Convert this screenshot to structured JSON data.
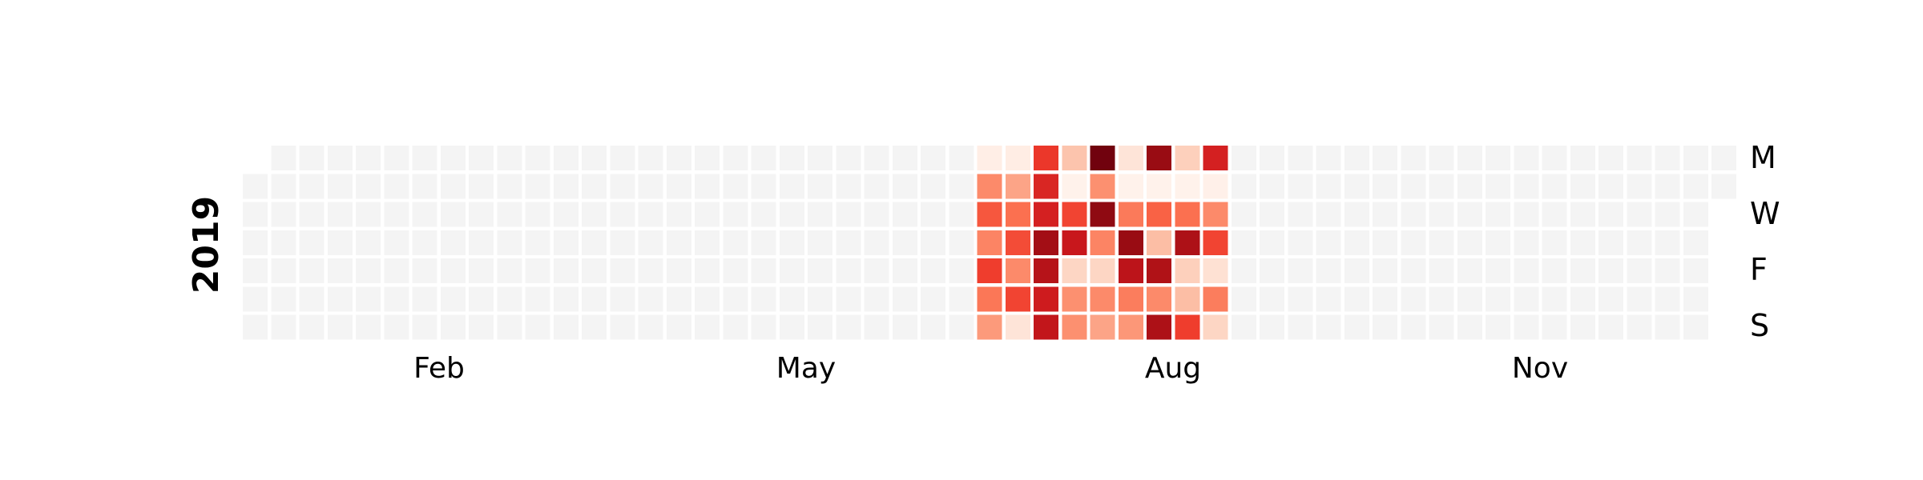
{
  "chart_data": {
    "type": "heatmap",
    "title": "",
    "xlabel": "",
    "ylabel": "2019",
    "year_label": "2019",
    "first_day": "2019-01-01",
    "month_labels": [
      "Feb",
      "May",
      "Aug",
      "Nov"
    ],
    "day_labels": [
      "M",
      "W",
      "F",
      "S"
    ],
    "colormap": "Reds",
    "empty_color": "#f4f4f4",
    "grid": false,
    "legend": "none",
    "active_range": [
      "2019-07-01",
      "2019-08-31"
    ],
    "weeks": [
      {
        "week_of": "2019-07-01",
        "values": [
          0.04,
          0.4,
          0.55,
          0.42,
          0.62,
          0.46,
          0.35
        ]
      },
      {
        "week_of": "2019-07-08",
        "values": [
          0.05,
          0.32,
          0.48,
          0.58,
          0.4,
          0.6,
          0.1
        ]
      },
      {
        "week_of": "2019-07-15",
        "values": [
          0.64,
          0.7,
          0.72,
          0.88,
          0.82,
          0.74,
          0.78
        ]
      },
      {
        "week_of": "2019-07-22",
        "values": [
          0.22,
          0.02,
          0.6,
          0.76,
          0.16,
          0.38,
          0.38
        ]
      },
      {
        "week_of": "2019-07-29",
        "values": [
          0.98,
          0.38,
          0.92,
          0.42,
          0.16,
          0.4,
          0.32
        ]
      },
      {
        "week_of": "2019-08-05",
        "values": [
          0.1,
          0.02,
          0.45,
          0.9,
          0.8,
          0.44,
          0.36
        ]
      },
      {
        "week_of": "2019-08-12",
        "values": [
          0.9,
          0.02,
          0.52,
          0.24,
          0.84,
          0.4,
          0.85
        ]
      },
      {
        "week_of": "2019-08-19",
        "values": [
          0.18,
          0.02,
          0.48,
          0.85,
          0.18,
          0.24,
          0.62
        ]
      },
      {
        "week_of": "2019-08-26",
        "values": [
          0.72,
          0.03,
          0.4,
          0.6,
          0.12,
          0.44,
          0.16
        ]
      }
    ]
  }
}
